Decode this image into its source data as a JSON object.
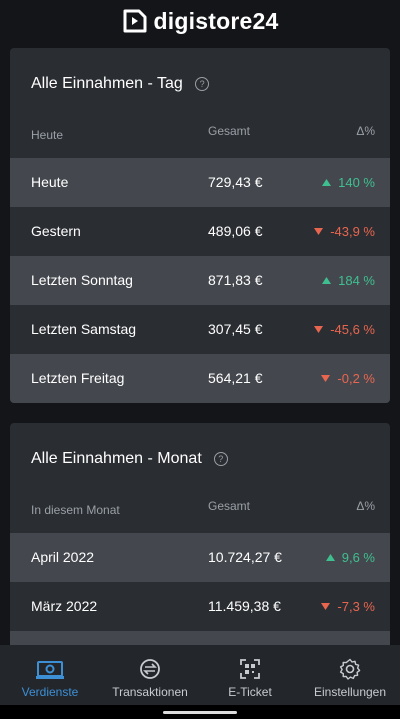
{
  "header": {
    "logo": "digistore24"
  },
  "cards": [
    {
      "title": "Alle Einnahmen - Tag",
      "columns": [
        "Heute",
        "Gesamt",
        "Δ%"
      ],
      "rows": [
        {
          "label": "Heute",
          "amount": "729,43 €",
          "delta": "140 %",
          "trend": "up"
        },
        {
          "label": "Gestern",
          "amount": "489,06 €",
          "delta": "-43,9 %",
          "trend": "down"
        },
        {
          "label": "Letzten Sonntag",
          "amount": "871,83 €",
          "delta": "184 %",
          "trend": "up"
        },
        {
          "label": "Letzten Samstag",
          "amount": "307,45 €",
          "delta": "-45,6 %",
          "trend": "down"
        },
        {
          "label": "Letzten Freitag",
          "amount": "564,21 €",
          "delta": "-0,2 %",
          "trend": "down"
        }
      ]
    },
    {
      "title": "Alle Einnahmen - Monat",
      "columns": [
        "In diesem Monat",
        "Gesamt",
        "Δ%"
      ],
      "rows": [
        {
          "label": "April 2022",
          "amount": "10.724,27 €",
          "delta": "9,6 %",
          "trend": "up"
        },
        {
          "label": "März 2022",
          "amount": "11.459,38 €",
          "delta": "-7,3 %",
          "trend": "down"
        }
      ]
    }
  ],
  "nav": [
    "Verdienste",
    "Transaktionen",
    "E-Ticket",
    "Einstellungen"
  ]
}
